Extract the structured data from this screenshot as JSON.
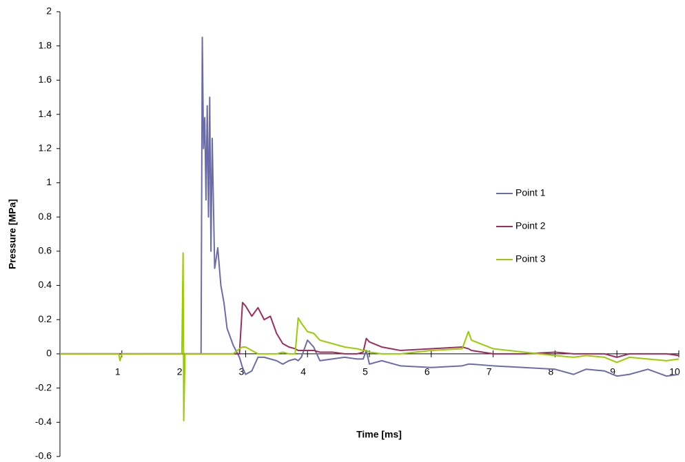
{
  "chart_data": {
    "type": "line",
    "xlabel": "Time [ms]",
    "ylabel": "Pressure [MPa]",
    "x": [
      0,
      0.5,
      0.95,
      0.97,
      1.0,
      1.5,
      1.97,
      1.99,
      2.0,
      2.02,
      2.1,
      2.28,
      2.3,
      2.32,
      2.34,
      2.36,
      2.38,
      2.4,
      2.42,
      2.44,
      2.46,
      2.5,
      2.55,
      2.6,
      2.65,
      2.7,
      2.8,
      2.9,
      2.95,
      3.0,
      3.1,
      3.2,
      3.3,
      3.4,
      3.5,
      3.6,
      3.7,
      3.8,
      3.85,
      3.9,
      4.0,
      4.1,
      4.2,
      4.4,
      4.6,
      4.8,
      4.9,
      4.95,
      5.0,
      5.2,
      5.5,
      6.0,
      6.5,
      6.6,
      6.65,
      7.0,
      7.5,
      8.0,
      8.3,
      8.5,
      8.8,
      9.0,
      9.2,
      9.5,
      9.8,
      10.0
    ],
    "series": [
      {
        "name": "Point 1",
        "color": "#6b6bab",
        "values": [
          0,
          0,
          0,
          0,
          0,
          0,
          0,
          0,
          0,
          0,
          0,
          0,
          1.85,
          1.2,
          1.38,
          0.9,
          1.45,
          0.8,
          1.5,
          0.6,
          1.26,
          0.5,
          0.62,
          0.4,
          0.3,
          0.15,
          0.05,
          -0.02,
          -0.08,
          -0.12,
          -0.1,
          -0.02,
          -0.02,
          -0.03,
          -0.04,
          -0.06,
          -0.04,
          -0.03,
          -0.04,
          -0.02,
          0.08,
          0.04,
          -0.04,
          -0.03,
          -0.02,
          -0.03,
          -0.03,
          0.02,
          -0.06,
          -0.04,
          -0.07,
          -0.08,
          -0.07,
          -0.06,
          -0.06,
          -0.07,
          -0.08,
          -0.09,
          -0.12,
          -0.09,
          -0.1,
          -0.13,
          -0.12,
          -0.09,
          -0.13,
          -0.12
        ]
      },
      {
        "name": "Point 2",
        "color": "#9c2c5e",
        "values": [
          0,
          0,
          0,
          0,
          0,
          0,
          0,
          0,
          0,
          0,
          0,
          0,
          0,
          0,
          0,
          0,
          0,
          0,
          0,
          0,
          0,
          0,
          0,
          0,
          0,
          0,
          0,
          0,
          0.3,
          0.28,
          0.22,
          0.27,
          0.2,
          0.22,
          0.12,
          0.06,
          0.04,
          0.03,
          0.02,
          0.02,
          0.02,
          0.02,
          0.01,
          0.01,
          0,
          0,
          0.01,
          0.09,
          0.07,
          0.04,
          0.02,
          0.03,
          0.04,
          0.03,
          0.02,
          0,
          0,
          0.01,
          0,
          0,
          0,
          -0.02,
          0,
          0,
          0,
          -0.01
        ]
      },
      {
        "name": "Point 3",
        "color": "#99cc00",
        "values": [
          0,
          0,
          0,
          -0.04,
          0,
          0,
          0,
          0.59,
          -0.39,
          0,
          0,
          0,
          0,
          0,
          0,
          0,
          0,
          0,
          0,
          0,
          0,
          0,
          0,
          0,
          0,
          0,
          0,
          0.03,
          0.04,
          0.04,
          0.02,
          0,
          0,
          0,
          0,
          0.01,
          0,
          0,
          0.21,
          0.18,
          0.13,
          0.12,
          0.08,
          0.06,
          0.04,
          0.03,
          0.02,
          0.02,
          0.01,
          0,
          0,
          0.02,
          0.03,
          0.13,
          0.08,
          0.03,
          0.01,
          -0.01,
          -0.02,
          -0.01,
          -0.02,
          -0.05,
          -0.02,
          -0.03,
          -0.04,
          -0.03
        ]
      }
    ],
    "xlim": [
      0,
      10
    ],
    "xticks": [
      1,
      2,
      3,
      4,
      5,
      6,
      7,
      8,
      9,
      10
    ],
    "ylim": [
      -0.6,
      2
    ],
    "yticks": [
      -0.6,
      -0.4,
      -0.2,
      0,
      0.2,
      0.4,
      0.6,
      0.8,
      1,
      1.2,
      1.4,
      1.6,
      1.8,
      2
    ]
  }
}
